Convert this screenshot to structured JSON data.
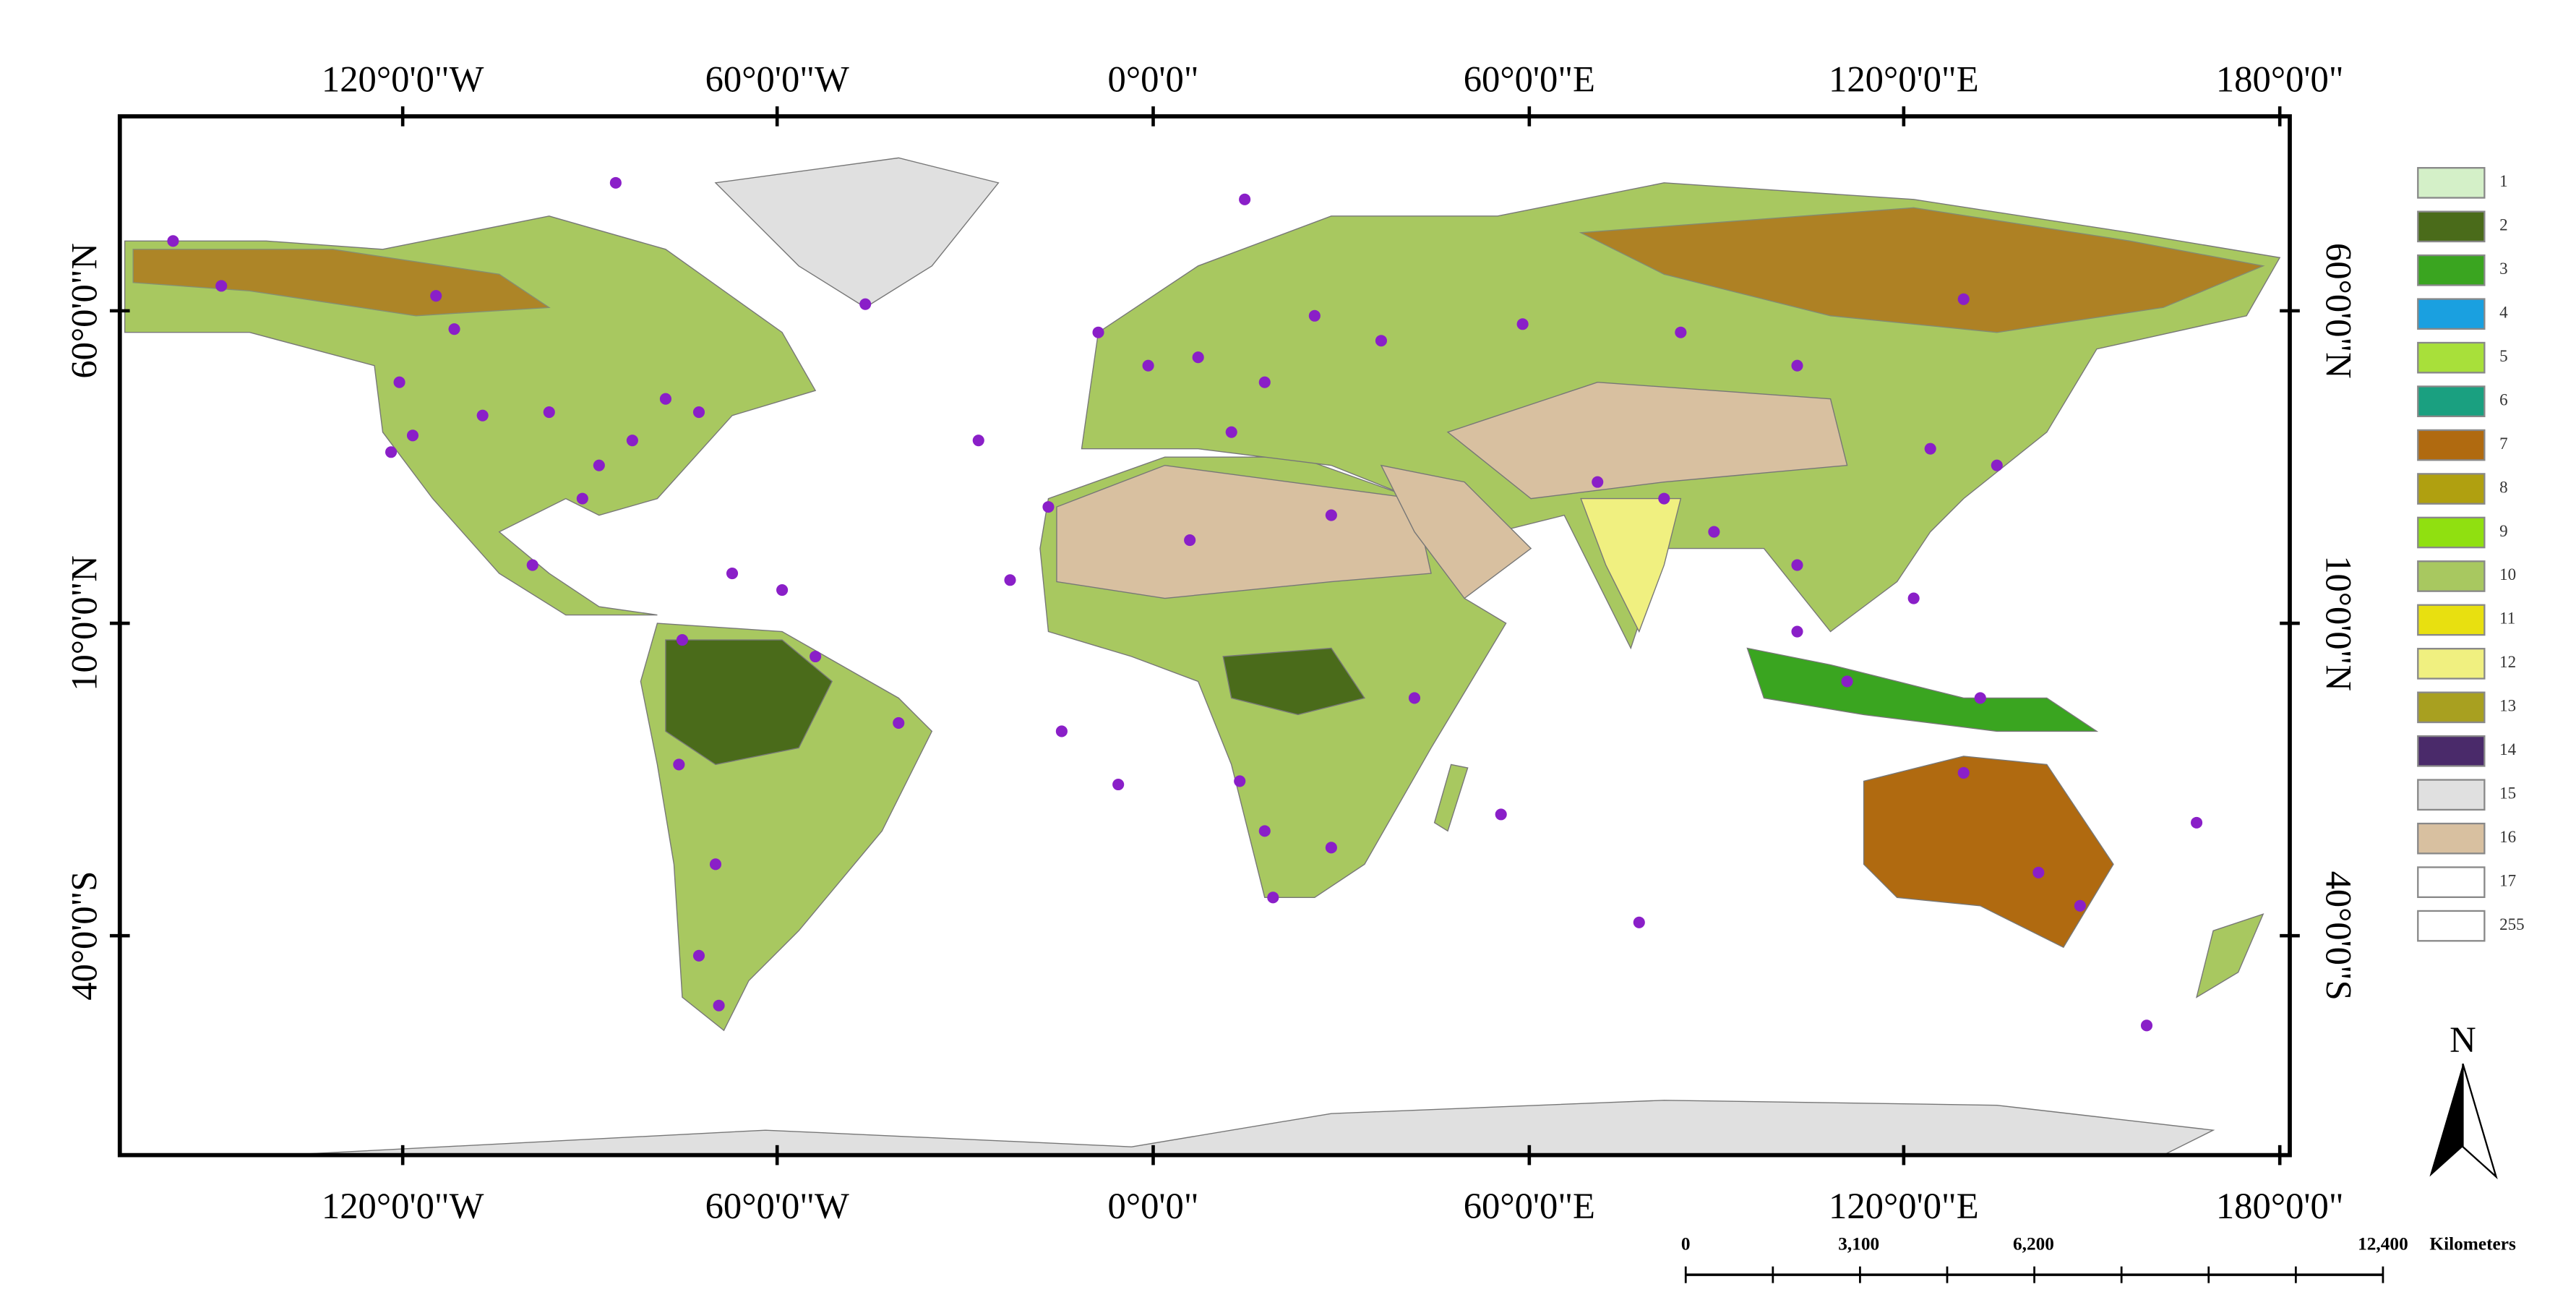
{
  "map": {
    "top_labels": [
      "120°0'0\"W",
      "60°0'0\"W",
      "0°0'0\"",
      "60°0'0\"E",
      "120°0'0\"E",
      "180°0'0\""
    ],
    "bottom_labels": [
      "120°0'0\"W",
      "60°0'0\"W",
      "0°0'0\"",
      "60°0'0\"E",
      "120°0'0\"E",
      "180°0'0\""
    ],
    "left_labels": [
      "60°0'0\"N",
      "10°0'0\"N",
      "40°0'0\"S"
    ],
    "right_labels": [
      "60°0'0\"N",
      "10°0'0\"N",
      "40°0'0\"S"
    ],
    "legend": [
      {
        "label": "1",
        "color": "#d4f0c8"
      },
      {
        "label": "2",
        "color": "#4a6b1a"
      },
      {
        "label": "3",
        "color": "#3aa520"
      },
      {
        "label": "4",
        "color": "#1aa0e0"
      },
      {
        "label": "5",
        "color": "#a8e03a"
      },
      {
        "label": "6",
        "color": "#1aa080"
      },
      {
        "label": "7",
        "color": "#b06a10"
      },
      {
        "label": "8",
        "color": "#b0a010"
      },
      {
        "label": "9",
        "color": "#90e010"
      },
      {
        "label": "10",
        "color": "#a8c860"
      },
      {
        "label": "11",
        "color": "#e8e010"
      },
      {
        "label": "12",
        "color": "#f0f080"
      },
      {
        "label": "13",
        "color": "#a8a020"
      },
      {
        "label": "14",
        "color": "#4a2a6a"
      },
      {
        "label": "15",
        "color": "#e0e0e0"
      },
      {
        "label": "16",
        "color": "#d8c0a0"
      },
      {
        "label": "17",
        "color": "#ffffff"
      },
      {
        "label": "255",
        "color": "#ffffff"
      }
    ],
    "scale_bar": {
      "labels": [
        "0",
        "3,100",
        "6,200",
        "12,400"
      ],
      "unit": "Kilometers"
    },
    "north": "N"
  }
}
